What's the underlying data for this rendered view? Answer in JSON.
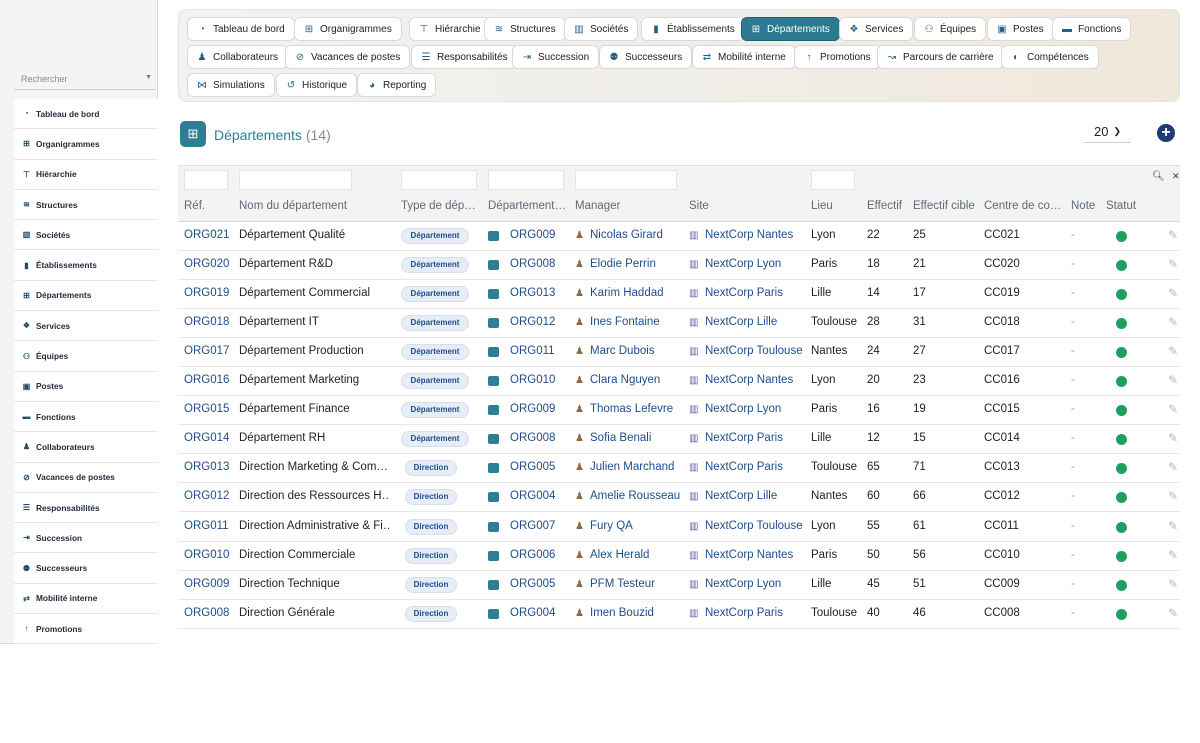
{
  "sidebar": {
    "search_placeholder": "Rechercher",
    "items": [
      {
        "label": "Tableau de bord",
        "icon": "dashboard-icon"
      },
      {
        "label": "Organigrammes",
        "icon": "sitemap-icon"
      },
      {
        "label": "Hiérarchie",
        "icon": "hierarchy-icon"
      },
      {
        "label": "Structures",
        "icon": "layers-icon"
      },
      {
        "label": "Sociétés",
        "icon": "building-group-icon"
      },
      {
        "label": "Établissements",
        "icon": "building-icon"
      },
      {
        "label": "Départements",
        "icon": "sitemap-icon"
      },
      {
        "label": "Services",
        "icon": "services-icon"
      },
      {
        "label": "Équipes",
        "icon": "team-icon"
      },
      {
        "label": "Postes",
        "icon": "id-badge-icon"
      },
      {
        "label": "Fonctions",
        "icon": "briefcase-icon"
      },
      {
        "label": "Collaborateurs",
        "icon": "user-icon"
      },
      {
        "label": "Vacances de postes",
        "icon": "user-slash-icon"
      },
      {
        "label": "Responsabilités",
        "icon": "list-icon"
      },
      {
        "label": "Succession",
        "icon": "succession-icon"
      },
      {
        "label": "Successeurs",
        "icon": "users-icon"
      },
      {
        "label": "Mobilité interne",
        "icon": "exchange-icon"
      },
      {
        "label": "Promotions",
        "icon": "arrow-up-icon"
      }
    ]
  },
  "nav": {
    "rows": [
      [
        {
          "label": "Tableau de bord",
          "icon": "dashboard-icon",
          "active": false
        },
        {
          "label": "Organigrammes",
          "icon": "sitemap-icon",
          "active": false
        },
        {
          "label": "Hiérarchie",
          "icon": "hierarchy-icon",
          "active": false
        },
        {
          "label": "Structures",
          "icon": "layers-icon",
          "active": false
        },
        {
          "label": "Sociétés",
          "icon": "building-group-icon",
          "active": false
        },
        {
          "label": "Établissements",
          "icon": "building-icon",
          "active": false
        },
        {
          "label": "Départements",
          "icon": "sitemap-icon",
          "active": true
        },
        {
          "label": "Services",
          "icon": "services-icon",
          "active": false
        },
        {
          "label": "Équipes",
          "icon": "team-icon",
          "active": false
        },
        {
          "label": "Postes",
          "icon": "id-badge-icon",
          "active": false
        },
        {
          "label": "Fonctions",
          "icon": "briefcase-icon",
          "active": false
        }
      ],
      [
        {
          "label": "Collaborateurs",
          "icon": "user-icon",
          "active": false
        },
        {
          "label": "Vacances de postes",
          "icon": "user-slash-icon",
          "active": false
        },
        {
          "label": "Responsabilités",
          "icon": "list-icon",
          "active": false
        },
        {
          "label": "Succession",
          "icon": "succession-icon",
          "active": false
        },
        {
          "label": "Successeurs",
          "icon": "users-icon",
          "active": false
        },
        {
          "label": "Mobilité interne",
          "icon": "exchange-icon",
          "active": false
        },
        {
          "label": "Promotions",
          "icon": "arrow-up-icon",
          "active": false
        },
        {
          "label": "Parcours de carrière",
          "icon": "route-icon",
          "active": false
        },
        {
          "label": "Compétences",
          "icon": "brain-icon",
          "active": false
        }
      ],
      [
        {
          "label": "Simulations",
          "icon": "simulation-icon",
          "active": false
        },
        {
          "label": "Historique",
          "icon": "history-icon",
          "active": false
        },
        {
          "label": "Reporting",
          "icon": "pie-chart-icon",
          "active": false
        }
      ]
    ]
  },
  "page": {
    "title": "Départements",
    "count": "(14)",
    "page_size": "20"
  },
  "table": {
    "columns": [
      "Réf.",
      "Nom du département",
      "Type de dép…",
      "Département…",
      "Manager",
      "Site",
      "Lieu",
      "Effectif",
      "Effectif cible",
      "Centre de co…",
      "Note",
      "Statut"
    ],
    "rows": [
      {
        "ref": "ORG021",
        "name": "Département Qualité",
        "type": "Département",
        "parent": "ORG009",
        "manager": "Nicolas Girard",
        "site": "NextCorp Nantes",
        "lieu": "Lyon",
        "effectif": "22",
        "cible": "25",
        "centre": "CC021",
        "note": "-",
        "status": "active"
      },
      {
        "ref": "ORG020",
        "name": "Département R&D",
        "type": "Département",
        "parent": "ORG008",
        "manager": "Elodie Perrin",
        "site": "NextCorp Lyon",
        "lieu": "Paris",
        "effectif": "18",
        "cible": "21",
        "centre": "CC020",
        "note": "-",
        "status": "active"
      },
      {
        "ref": "ORG019",
        "name": "Département Commercial",
        "type": "Département",
        "parent": "ORG013",
        "manager": "Karim Haddad",
        "site": "NextCorp Paris",
        "lieu": "Lille",
        "effectif": "14",
        "cible": "17",
        "centre": "CC019",
        "note": "-",
        "status": "active"
      },
      {
        "ref": "ORG018",
        "name": "Département IT",
        "type": "Département",
        "parent": "ORG012",
        "manager": "Ines Fontaine",
        "site": "NextCorp Lille",
        "lieu": "Toulouse",
        "effectif": "28",
        "cible": "31",
        "centre": "CC018",
        "note": "-",
        "status": "active"
      },
      {
        "ref": "ORG017",
        "name": "Département Production",
        "type": "Département",
        "parent": "ORG011",
        "manager": "Marc Dubois",
        "site": "NextCorp Toulouse",
        "lieu": "Nantes",
        "effectif": "24",
        "cible": "27",
        "centre": "CC017",
        "note": "-",
        "status": "active"
      },
      {
        "ref": "ORG016",
        "name": "Département Marketing",
        "type": "Département",
        "parent": "ORG010",
        "manager": "Clara Nguyen",
        "site": "NextCorp Nantes",
        "lieu": "Lyon",
        "effectif": "20",
        "cible": "23",
        "centre": "CC016",
        "note": "-",
        "status": "active"
      },
      {
        "ref": "ORG015",
        "name": "Département Finance",
        "type": "Département",
        "parent": "ORG009",
        "manager": "Thomas Lefevre",
        "site": "NextCorp Lyon",
        "lieu": "Paris",
        "effectif": "16",
        "cible": "19",
        "centre": "CC015",
        "note": "-",
        "status": "active"
      },
      {
        "ref": "ORG014",
        "name": "Département RH",
        "type": "Département",
        "parent": "ORG008",
        "manager": "Sofia Benali",
        "site": "NextCorp Paris",
        "lieu": "Lille",
        "effectif": "12",
        "cible": "15",
        "centre": "CC014",
        "note": "-",
        "status": "active"
      },
      {
        "ref": "ORG013",
        "name": "Direction Marketing & Com…",
        "type": "Direction",
        "parent": "ORG005",
        "manager": "Julien Marchand",
        "site": "NextCorp Paris",
        "lieu": "Toulouse",
        "effectif": "65",
        "cible": "71",
        "centre": "CC013",
        "note": "-",
        "status": "active"
      },
      {
        "ref": "ORG012",
        "name": "Direction des Ressources H…",
        "type": "Direction",
        "parent": "ORG004",
        "manager": "Amelie Rousseau",
        "site": "NextCorp Lille",
        "lieu": "Nantes",
        "effectif": "60",
        "cible": "66",
        "centre": "CC012",
        "note": "-",
        "status": "active"
      },
      {
        "ref": "ORG011",
        "name": "Direction Administrative & Fi…",
        "type": "Direction",
        "parent": "ORG007",
        "manager": "Fury QA",
        "site": "NextCorp Toulouse",
        "lieu": "Lyon",
        "effectif": "55",
        "cible": "61",
        "centre": "CC011",
        "note": "-",
        "status": "active"
      },
      {
        "ref": "ORG010",
        "name": "Direction Commerciale",
        "type": "Direction",
        "parent": "ORG006",
        "manager": "Alex Herald",
        "site": "NextCorp Nantes",
        "lieu": "Paris",
        "effectif": "50",
        "cible": "56",
        "centre": "CC010",
        "note": "-",
        "status": "active"
      },
      {
        "ref": "ORG009",
        "name": "Direction Technique",
        "type": "Direction",
        "parent": "ORG005",
        "manager": "PFM Testeur",
        "site": "NextCorp Lyon",
        "lieu": "Lille",
        "effectif": "45",
        "cible": "51",
        "centre": "CC009",
        "note": "-",
        "status": "active"
      },
      {
        "ref": "ORG008",
        "name": "Direction Générale",
        "type": "Direction",
        "parent": "ORG004",
        "manager": "Imen Bouzid",
        "site": "NextCorp Paris",
        "lieu": "Toulouse",
        "effectif": "40",
        "cible": "46",
        "centre": "CC008",
        "note": "-",
        "status": "active"
      }
    ]
  },
  "colors": {
    "accent": "#2e7e96",
    "active_pill": "#2b7a92",
    "status_active": "#1f9f5f",
    "ref_link": "#1f4d8c",
    "add_button": "#1f3a78"
  }
}
